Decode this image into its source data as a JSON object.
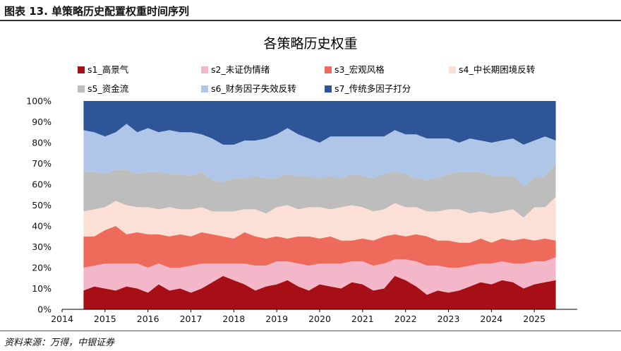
{
  "figure": {
    "label": "图表 13. 单策略历史配置权重时间序列",
    "source": "资料来源：万得，中银证券"
  },
  "chart_data": {
    "type": "area",
    "stacked": true,
    "title": "各策略历史权重",
    "xlabel": "",
    "ylabel": "",
    "x_ticks": [
      "2014",
      "2015",
      "2016",
      "2017",
      "2018",
      "2019",
      "2020",
      "2021",
      "2022",
      "2023",
      "2024",
      "2025"
    ],
    "xlim": [
      "2014-01",
      "2026-01"
    ],
    "y_ticks": [
      "0%",
      "10%",
      "20%",
      "30%",
      "40%",
      "50%",
      "60%",
      "70%",
      "80%",
      "90%",
      "100%"
    ],
    "ylim": [
      0,
      100
    ],
    "grid": false,
    "legend_position": "top",
    "x": [
      "2014-07",
      "2014-10",
      "2015-01",
      "2015-04",
      "2015-07",
      "2015-10",
      "2016-01",
      "2016-04",
      "2016-07",
      "2016-10",
      "2017-01",
      "2017-04",
      "2017-07",
      "2017-10",
      "2018-01",
      "2018-04",
      "2018-07",
      "2018-10",
      "2019-01",
      "2019-04",
      "2019-07",
      "2019-10",
      "2020-01",
      "2020-04",
      "2020-07",
      "2020-10",
      "2021-01",
      "2021-04",
      "2021-07",
      "2021-10",
      "2022-01",
      "2022-04",
      "2022-07",
      "2022-10",
      "2023-01",
      "2023-04",
      "2023-07",
      "2023-10",
      "2024-01",
      "2024-04",
      "2024-07",
      "2024-10",
      "2025-01",
      "2025-04",
      "2025-07"
    ],
    "series": [
      {
        "name": "s1_高景气",
        "color": "#a50f15",
        "values": [
          9,
          11,
          10,
          9,
          11,
          10,
          8,
          12,
          9,
          10,
          8,
          10,
          13,
          16,
          14,
          12,
          9,
          11,
          12,
          14,
          11,
          9,
          12,
          11,
          10,
          13,
          12,
          9,
          10,
          16,
          14,
          11,
          7,
          9,
          8,
          9,
          11,
          13,
          12,
          14,
          13,
          10,
          12,
          13,
          14
        ]
      },
      {
        "name": "s2_未证伪情绪",
        "color": "#f4b6c9",
        "values": [
          11,
          10,
          12,
          13,
          11,
          12,
          12,
          10,
          11,
          10,
          13,
          12,
          9,
          6,
          8,
          10,
          12,
          10,
          11,
          9,
          11,
          12,
          10,
          11,
          12,
          10,
          11,
          12,
          12,
          8,
          10,
          12,
          14,
          12,
          12,
          11,
          10,
          9,
          10,
          9,
          9,
          12,
          11,
          10,
          11
        ]
      },
      {
        "name": "s3_宏观风格",
        "color": "#ee6a5a",
        "values": [
          15,
          14,
          16,
          18,
          14,
          15,
          16,
          14,
          15,
          16,
          14,
          15,
          14,
          13,
          12,
          15,
          14,
          13,
          12,
          11,
          13,
          14,
          12,
          13,
          11,
          10,
          11,
          12,
          13,
          12,
          11,
          13,
          14,
          12,
          13,
          12,
          11,
          12,
          10,
          11,
          11,
          12,
          10,
          11,
          8
        ]
      },
      {
        "name": "s4_中长期困境反转",
        "color": "#fde0d5",
        "values": [
          12,
          13,
          11,
          12,
          14,
          12,
          13,
          12,
          14,
          12,
          13,
          12,
          11,
          12,
          13,
          11,
          13,
          12,
          14,
          16,
          13,
          14,
          15,
          13,
          16,
          17,
          15,
          14,
          13,
          15,
          14,
          13,
          12,
          14,
          15,
          16,
          14,
          13,
          14,
          13,
          15,
          10,
          16,
          15,
          21
        ]
      },
      {
        "name": "s5_资金流",
        "color": "#bdbdbd",
        "values": [
          19,
          18,
          16,
          15,
          17,
          16,
          17,
          18,
          16,
          17,
          16,
          17,
          15,
          14,
          16,
          15,
          16,
          17,
          14,
          15,
          16,
          15,
          14,
          16,
          14,
          15,
          15,
          16,
          17,
          15,
          16,
          14,
          15,
          16,
          17,
          18,
          20,
          19,
          18,
          17,
          16,
          15,
          14,
          15,
          16
        ]
      },
      {
        "name": "s6_财务因子失效反转",
        "color": "#afc6e9",
        "values": [
          20,
          19,
          18,
          18,
          22,
          20,
          21,
          19,
          21,
          20,
          21,
          18,
          20,
          18,
          16,
          18,
          17,
          19,
          21,
          22,
          20,
          18,
          17,
          19,
          20,
          18,
          19,
          20,
          18,
          20,
          19,
          21,
          20,
          19,
          17,
          14,
          16,
          15,
          16,
          17,
          18,
          20,
          18,
          19,
          11
        ]
      },
      {
        "name": "s7_传统多因子打分",
        "color": "#2e5597",
        "values": [
          14,
          15,
          17,
          15,
          11,
          15,
          13,
          15,
          14,
          15,
          15,
          16,
          18,
          21,
          21,
          19,
          19,
          18,
          16,
          13,
          16,
          18,
          20,
          17,
          17,
          17,
          17,
          17,
          17,
          14,
          16,
          16,
          18,
          18,
          18,
          20,
          18,
          19,
          20,
          19,
          18,
          21,
          19,
          17,
          19
        ]
      }
    ]
  }
}
